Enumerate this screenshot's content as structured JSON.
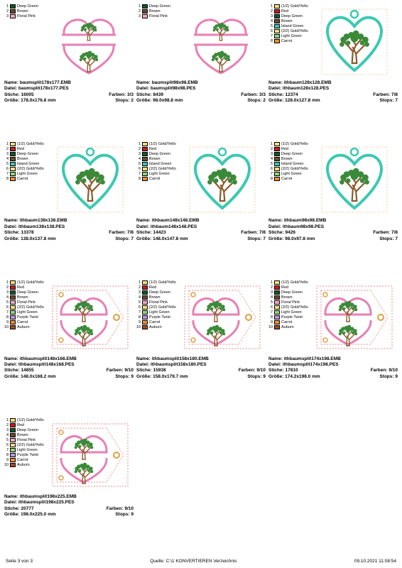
{
  "palettes": {
    "p3": [
      {
        "n": "1",
        "c": "#0a5a2a",
        "label": "Deep Green"
      },
      {
        "n": "2",
        "c": "#6b4a2a",
        "label": "Brown"
      },
      {
        "n": "3",
        "c": "#f4a6c6",
        "label": "Floral Pink"
      }
    ],
    "p8": [
      {
        "n": "1",
        "c": "#f5e07a",
        "label": "(1/2) Gold/Yello"
      },
      {
        "n": "2",
        "c": "#d01818",
        "label": "Red"
      },
      {
        "n": "3",
        "c": "#0a5a2a",
        "label": "Deep Green"
      },
      {
        "n": "4",
        "c": "#6b4a2a",
        "label": "Brown"
      },
      {
        "n": "5",
        "c": "#3bc9b0",
        "label": "Island Green"
      },
      {
        "n": "6",
        "c": "#f5e07a",
        "label": "(2/2) Gold/Yello"
      },
      {
        "n": "7",
        "c": "#8fd67a",
        "label": "Light Green"
      },
      {
        "n": "8",
        "c": "#f28c28",
        "label": "Carrot"
      }
    ],
    "p10": [
      {
        "n": "1",
        "c": "#f5e07a",
        "label": "(1/2) Gold/Yello"
      },
      {
        "n": "2",
        "c": "#d01818",
        "label": "Red"
      },
      {
        "n": "3",
        "c": "#0a5a2a",
        "label": "Deep Green"
      },
      {
        "n": "4",
        "c": "#6b4a2a",
        "label": "Brown"
      },
      {
        "n": "5",
        "c": "#f4a6c6",
        "label": "Floral Pink"
      },
      {
        "n": "6",
        "c": "#f5e07a",
        "label": "(2/2) Gold/Yello"
      },
      {
        "n": "7",
        "c": "#8fd67a",
        "label": "Light Green"
      },
      {
        "n": "8",
        "c": "#b89ae0",
        "label": "Purple Twist"
      },
      {
        "n": "9",
        "c": "#f28c28",
        "label": "Carrot"
      },
      {
        "n": "10",
        "c": "#a04a2a",
        "label": "Auburn"
      }
    ]
  },
  "items": [
    {
      "palette": "p3",
      "thumb": "split",
      "name": "baumsplit178x177.EMB",
      "datei": "baumsplit178x177.PES",
      "stiche": "16005",
      "farben": "3/3",
      "groesse": "178.0x176.8 mm",
      "stops": "2"
    },
    {
      "palette": "p3",
      "thumb": "split",
      "name": "baumsplit98x98.EMB",
      "datei": "baumsplit98x98.PES",
      "stiche": "8439",
      "farben": "3/3",
      "groesse": "98.0x98.8 mm",
      "stops": "2"
    },
    {
      "palette": "p8",
      "thumb": "heart",
      "name": "ithbaum128x128.EMB",
      "datei": "ithbaum128x128.PES",
      "stiche": "12374",
      "farben": "7/8",
      "groesse": "128.0x127.8 mm",
      "stops": "7"
    },
    {
      "palette": "p8",
      "thumb": "heart",
      "name": "ithbaum138x138.EMB",
      "datei": "ithbaum138x138.PES",
      "stiche": "13378",
      "farben": "7/8",
      "groesse": "138.0x137.8 mm",
      "stops": "7"
    },
    {
      "palette": "p8",
      "thumb": "heart",
      "name": "ithbaum148x148.EMB",
      "datei": "ithbaum148x148.PES",
      "stiche": "14423",
      "farben": "7/8",
      "groesse": "148.0x147.8 mm",
      "stops": "7"
    },
    {
      "palette": "p8",
      "thumb": "heart",
      "name": "ithbaum98x98.EMB",
      "datei": "ithbaum98x98.PES",
      "stiche": "9426",
      "farben": "7/8",
      "groesse": "98.0x97.8 mm",
      "stops": "7"
    },
    {
      "palette": "p10",
      "thumb": "tag",
      "name": "ithbaumsplit148x168.EMB",
      "datei": "ithbaumsplit148x168.PES",
      "stiche": "14855",
      "farben": "9/10",
      "groesse": "148.0x168.2 mm",
      "stops": "9"
    },
    {
      "palette": "p10",
      "thumb": "tag",
      "name": "ithbaumsplit158x180.EMB",
      "datei": "ithbaumsplit158x180.PES",
      "stiche": "15938",
      "farben": "9/10",
      "groesse": "158.0x179.7 mm",
      "stops": "9"
    },
    {
      "palette": "p10",
      "thumb": "tag",
      "name": "ithbaumsplit174x198.EMB",
      "datei": "ithbaumsplit174x198.PES",
      "stiche": "17810",
      "farben": "9/10",
      "groesse": "174.2x198.0 mm",
      "stops": "9"
    },
    {
      "palette": "p10",
      "thumb": "tag",
      "name": "ithbaumsplit198x225.EMB",
      "datei": "ithbaumsplit198x225.PES",
      "stiche": "20777",
      "farben": "9/10",
      "groesse": "198.0x225.0 mm",
      "stops": "9"
    }
  ],
  "labels": {
    "name": "Name:",
    "datei": "Datei:",
    "stiche": "Stiche:",
    "farben": "Farben:",
    "groesse": "Größe:",
    "stops": "Stops:"
  },
  "footer": {
    "left": "Seite 3 von 3",
    "center": "Quelle: C:\\1 KONVERTIEREN Verzeichnis",
    "right": "09.10.2021 11:08:54"
  },
  "colors": {
    "pink": "#e87fb5",
    "teal": "#3bc9b0",
    "brown": "#8b5a2b",
    "green": "#3a8a3a",
    "red": "#d01818",
    "frame": "#e0a040"
  }
}
